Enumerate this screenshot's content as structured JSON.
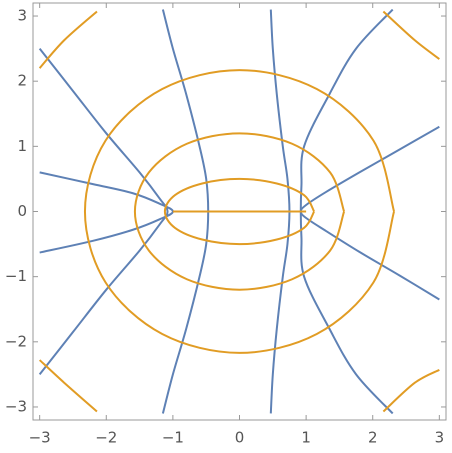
{
  "chart_data": {
    "type": "line",
    "xlim": [
      -3.1,
      3.1
    ],
    "ylim": [
      -3.2,
      3.2
    ],
    "xticks": [
      {
        "value": -3,
        "label": "−3"
      },
      {
        "value": -2,
        "label": "−2"
      },
      {
        "value": -1,
        "label": "−1"
      },
      0,
      1,
      2,
      3
    ],
    "yticks": [
      {
        "value": -3,
        "label": "−3"
      },
      {
        "value": -2,
        "label": "−2"
      },
      {
        "value": -1,
        "label": "−1"
      },
      0,
      1,
      2,
      3
    ],
    "grid": false,
    "series": [
      {
        "color": "#5e81b5",
        "x": [
          -3,
          -2.5,
          -2,
          -1.5,
          -1.2,
          -1.08,
          -1.2,
          -1.5,
          -2,
          -2.5,
          -3
        ],
        "y": [
          2.5,
          1.85,
          1.2,
          0.6,
          0.2,
          0,
          -0.2,
          -0.6,
          -1.2,
          -1.85,
          -2.5
        ]
      },
      {
        "color": "#5e81b5",
        "x": [
          -3,
          -2.2,
          -1.6,
          -1.2,
          -1.0,
          -1.2,
          -1.6,
          -2.2,
          -3
        ],
        "y": [
          0.6,
          0.42,
          0.28,
          0.12,
          0,
          -0.12,
          -0.28,
          -0.45,
          -0.63
        ]
      },
      {
        "color": "#5e81b5",
        "x": [
          -1.15,
          -1.0,
          -0.8,
          -0.6,
          -0.5,
          -0.47,
          -0.5,
          -0.6,
          -0.8,
          -1.0,
          -1.15
        ],
        "y": [
          3.1,
          2.5,
          1.8,
          1.0,
          0.5,
          0,
          -0.5,
          -1.0,
          -1.8,
          -2.5,
          -3.1
        ]
      },
      {
        "color": "#5e81b5",
        "x": [
          0.47,
          0.5,
          0.56,
          0.65,
          0.72,
          0.75,
          0.72,
          0.65,
          0.56,
          0.5,
          0.47
        ],
        "y": [
          3.1,
          2.5,
          1.8,
          1.0,
          0.5,
          0,
          -0.5,
          -1.0,
          -1.8,
          -2.5,
          -3.1
        ]
      },
      {
        "color": "#5e81b5",
        "x": [
          2.3,
          1.75,
          1.35,
          0.97,
          0.93,
          0.92,
          0.93,
          0.97,
          1.35,
          1.75,
          2.3
        ],
        "y": [
          3.1,
          2.5,
          1.8,
          1.0,
          0.4,
          0,
          -0.4,
          -1.0,
          -1.8,
          -2.5,
          -3.1
        ]
      },
      {
        "color": "#5e81b5",
        "x": [
          3,
          2.4,
          1.8,
          1.3,
          1.0,
          0.92,
          1.0,
          1.3,
          1.8,
          2.4,
          3
        ],
        "y": [
          1.3,
          0.95,
          0.6,
          0.3,
          0.1,
          0,
          -0.1,
          -0.3,
          -0.62,
          -0.98,
          -1.35
        ]
      },
      {
        "color": "#e19c24",
        "x": [
          1.12,
          0.97,
          0.56,
          0,
          -0.56,
          -0.97,
          -1.12,
          -0.97,
          -0.56,
          0,
          0.56,
          0.97,
          1.12
        ],
        "y": [
          0,
          0.25,
          0.43,
          0.5,
          0.43,
          0.25,
          0,
          -0.25,
          -0.43,
          -0.5,
          -0.43,
          -0.25,
          0
        ]
      },
      {
        "color": "#e19c24",
        "x": [
          1.57,
          1.36,
          0.79,
          0,
          -0.79,
          -1.36,
          -1.57,
          -1.36,
          -0.79,
          0,
          0.79,
          1.36,
          1.57
        ],
        "y": [
          0,
          0.6,
          1.04,
          1.2,
          1.04,
          0.6,
          0,
          -0.6,
          -1.04,
          -1.2,
          -1.04,
          -0.6,
          0
        ]
      },
      {
        "color": "#e19c24",
        "x": [
          2.32,
          2.01,
          1.16,
          0,
          -1.16,
          -2.01,
          -2.32,
          -2.01,
          -1.16,
          0,
          1.16,
          2.01,
          2.32
        ],
        "y": [
          0,
          1.09,
          1.88,
          2.17,
          1.88,
          1.09,
          0,
          -1.09,
          -1.88,
          -2.17,
          -1.88,
          -1.09,
          0
        ]
      },
      {
        "color": "#e19c24",
        "x": [
          -1,
          1
        ],
        "y": [
          0,
          0
        ]
      },
      {
        "color": "#e19c24",
        "x": [
          -3,
          -2.63,
          -2.14
        ],
        "y": [
          2.2,
          2.63,
          3.07
        ]
      },
      {
        "color": "#e19c24",
        "x": [
          2.16,
          2.63,
          3
        ],
        "y": [
          3.07,
          2.63,
          2.34
        ]
      },
      {
        "color": "#e19c24",
        "x": [
          -3,
          -2.63,
          -2.14
        ],
        "y": [
          -2.28,
          -2.63,
          -3.07
        ]
      },
      {
        "color": "#e19c24",
        "x": [
          2.16,
          2.63,
          3
        ],
        "y": [
          -3.07,
          -2.63,
          -2.43
        ]
      }
    ]
  }
}
